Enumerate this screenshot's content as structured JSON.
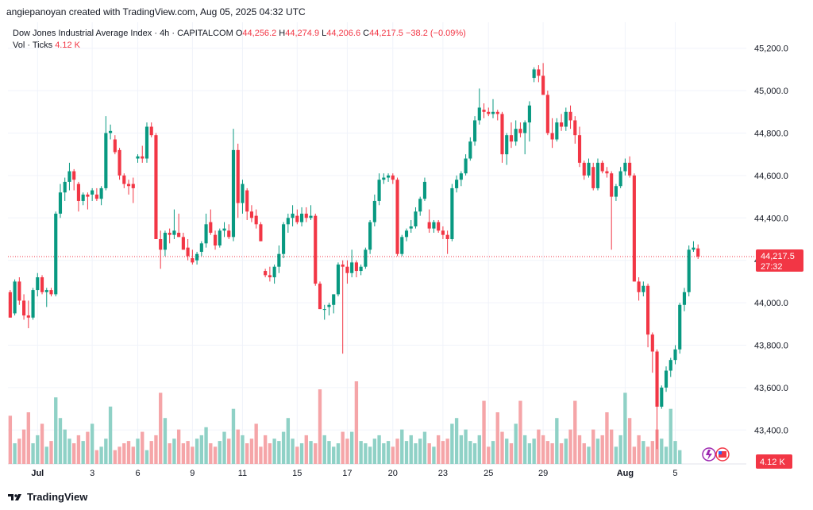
{
  "header": {
    "credit": "angiepanoyan created with TradingView.com, Aug 05, 2025 04:32 UTC"
  },
  "legend": {
    "symbol": "Dow Jones Industrial Average Index · 4h · CAPITALCOM",
    "o_label": "O",
    "o_value": "44,256.2",
    "h_label": "H",
    "h_value": "44,274.9",
    "l_label": "L",
    "l_value": "44,206.6",
    "c_label": "C",
    "c_value": "44,217.5",
    "change": "−38.2 (−0.09%)",
    "vol_label": "Vol · Ticks",
    "vol_value": "4.12 K"
  },
  "price_badge": {
    "price": "44,217.5",
    "countdown": "27:32"
  },
  "volume_badge": "4.12 K",
  "footer": {
    "brand": "TradingView"
  },
  "colors": {
    "up": "#089981",
    "down": "#f23645",
    "vol_up": "#8fd1c6",
    "vol_down": "#f5a5a8",
    "grid": "#f0f3fa"
  },
  "chart_data": {
    "type": "candlestick",
    "title": "Dow Jones Industrial Average Index · 4h · CAPITALCOM",
    "y_ticks": [
      "43,400.0",
      "43,600.0",
      "43,800.0",
      "44,000.0",
      "44,200.0",
      "44,400.0",
      "44,600.0",
      "44,800.0",
      "45,000.0",
      "45,200.0"
    ],
    "y_tick_values": [
      43400,
      43600,
      43800,
      44000,
      44200,
      44400,
      44600,
      44800,
      45000,
      45200
    ],
    "ylim": [
      43300,
      45300
    ],
    "x_tick_labels": [
      "Jul",
      "3",
      "6",
      "9",
      "11",
      "15",
      "17",
      "20",
      "23",
      "25",
      "29",
      "Aug",
      "5"
    ],
    "x_tick_index": [
      6,
      18,
      28,
      40,
      51,
      63,
      74,
      84,
      95,
      105,
      117,
      135,
      146
    ],
    "last_price": 44217.5,
    "candles": [
      [
        44050,
        44060,
        43930,
        43930
      ],
      [
        43950,
        44110,
        43940,
        44100
      ],
      [
        44100,
        44120,
        43990,
        44010
      ],
      [
        44010,
        44040,
        43920,
        43940
      ],
      [
        43940,
        44010,
        43880,
        43930
      ],
      [
        43930,
        44070,
        43920,
        44060
      ],
      [
        44060,
        44140,
        44030,
        44120
      ],
      [
        44120,
        44130,
        44040,
        44050
      ],
      [
        44050,
        44070,
        43980,
        44060
      ],
      [
        44060,
        44070,
        44030,
        44040
      ],
      [
        44040,
        44430,
        44030,
        44420
      ],
      [
        44420,
        44560,
        44400,
        44520
      ],
      [
        44520,
        44590,
        44480,
        44570
      ],
      [
        44570,
        44660,
        44530,
        44620
      ],
      [
        44620,
        44630,
        44530,
        44580
      ],
      [
        44560,
        44570,
        44430,
        44480
      ],
      [
        44480,
        44520,
        44460,
        44510
      ],
      [
        44510,
        44520,
        44440,
        44500
      ],
      [
        44510,
        44540,
        44480,
        44530
      ],
      [
        44510,
        44540,
        44480,
        44490
      ],
      [
        44490,
        44550,
        44460,
        44540
      ],
      [
        44540,
        44880,
        44530,
        44800
      ],
      [
        44800,
        44840,
        44770,
        44810
      ],
      [
        44770,
        44790,
        44700,
        44710
      ],
      [
        44720,
        44730,
        44580,
        44600
      ],
      [
        44600,
        44610,
        44540,
        44560
      ],
      [
        44560,
        44580,
        44510,
        44550
      ],
      [
        44560,
        44590,
        44470,
        44540
      ],
      [
        44680,
        44700,
        44660,
        44690
      ],
      [
        44690,
        44740,
        44660,
        44680
      ],
      [
        44680,
        44850,
        44660,
        44830
      ],
      [
        44830,
        44850,
        44780,
        44790
      ],
      [
        44790,
        44800,
        44300,
        44300
      ],
      [
        44300,
        44340,
        44160,
        44250
      ],
      [
        44250,
        44340,
        44220,
        44330
      ],
      [
        44330,
        44350,
        44280,
        44320
      ],
      [
        44320,
        44440,
        44300,
        44340
      ],
      [
        44330,
        44420,
        44310,
        44310
      ],
      [
        44310,
        44330,
        44250,
        44250
      ],
      [
        44260,
        44300,
        44200,
        44220
      ],
      [
        44210,
        44250,
        44180,
        44190
      ],
      [
        44200,
        44240,
        44180,
        44230
      ],
      [
        44240,
        44290,
        44220,
        44280
      ],
      [
        44280,
        44420,
        44260,
        44370
      ],
      [
        44380,
        44440,
        44320,
        44330
      ],
      [
        44320,
        44340,
        44250,
        44270
      ],
      [
        44270,
        44350,
        44260,
        44340
      ],
      [
        44340,
        44380,
        44310,
        44350
      ],
      [
        44340,
        44370,
        44300,
        44310
      ],
      [
        44310,
        44820,
        44290,
        44720
      ],
      [
        44720,
        44750,
        44400,
        44470
      ],
      [
        44470,
        44580,
        44420,
        44560
      ],
      [
        44530,
        44540,
        44390,
        44430
      ],
      [
        44430,
        44460,
        44380,
        44400
      ],
      [
        44410,
        44440,
        44350,
        44370
      ],
      [
        44370,
        44380,
        44290,
        44290
      ],
      [
        44150,
        44160,
        44120,
        44130
      ],
      [
        44130,
        44170,
        44100,
        44120
      ],
      [
        44120,
        44180,
        44090,
        44170
      ],
      [
        44170,
        44270,
        44140,
        44230
      ],
      [
        44230,
        44380,
        44210,
        44370
      ],
      [
        44370,
        44420,
        44330,
        44400
      ],
      [
        44400,
        44460,
        44360,
        44420
      ],
      [
        44410,
        44440,
        44370,
        44380
      ],
      [
        44380,
        44450,
        44360,
        44420
      ],
      [
        44420,
        44450,
        44380,
        44400
      ],
      [
        44400,
        44460,
        44390,
        44410
      ],
      [
        44410,
        44420,
        44080,
        44090
      ],
      [
        44090,
        44100,
        43970,
        43970
      ],
      [
        43970,
        43990,
        43920,
        43970
      ],
      [
        43980,
        44000,
        43940,
        43990
      ],
      [
        43990,
        44040,
        43950,
        44040
      ],
      [
        44040,
        44190,
        44030,
        44180
      ],
      [
        44180,
        44200,
        43760,
        44170
      ],
      [
        44170,
        44200,
        44090,
        44140
      ],
      [
        44140,
        44250,
        44120,
        44190
      ],
      [
        44190,
        44200,
        44120,
        44150
      ],
      [
        44150,
        44180,
        44130,
        44170
      ],
      [
        44170,
        44260,
        44160,
        44250
      ],
      [
        44250,
        44390,
        44230,
        44380
      ],
      [
        44380,
        44510,
        44360,
        44480
      ],
      [
        44480,
        44610,
        44460,
        44580
      ],
      [
        44580,
        44610,
        44560,
        44590
      ],
      [
        44590,
        44610,
        44570,
        44600
      ],
      [
        44600,
        44610,
        44560,
        44580
      ],
      [
        44580,
        44590,
        44220,
        44230
      ],
      [
        44230,
        44320,
        44220,
        44310
      ],
      [
        44310,
        44350,
        44290,
        44340
      ],
      [
        44350,
        44390,
        44330,
        44360
      ],
      [
        44360,
        44450,
        44350,
        44430
      ],
      [
        44430,
        44500,
        44410,
        44490
      ],
      [
        44490,
        44590,
        44480,
        44570
      ],
      [
        44380,
        44440,
        44330,
        44350
      ],
      [
        44350,
        44390,
        44330,
        44380
      ],
      [
        44380,
        44390,
        44330,
        44340
      ],
      [
        44340,
        44360,
        44300,
        44320
      ],
      [
        44320,
        44340,
        44230,
        44300
      ],
      [
        44300,
        44560,
        44290,
        44540
      ],
      [
        44540,
        44600,
        44520,
        44580
      ],
      [
        44580,
        44620,
        44550,
        44610
      ],
      [
        44610,
        44700,
        44600,
        44680
      ],
      [
        44680,
        44780,
        44670,
        44760
      ],
      [
        44760,
        44880,
        44740,
        44860
      ],
      [
        44860,
        45010,
        44840,
        44920
      ],
      [
        44910,
        44940,
        44870,
        44900
      ],
      [
        44900,
        44920,
        44880,
        44890
      ],
      [
        44890,
        44960,
        44870,
        44900
      ],
      [
        44900,
        44910,
        44860,
        44890
      ],
      [
        44890,
        44900,
        44660,
        44700
      ],
      [
        44700,
        44800,
        44650,
        44790
      ],
      [
        44790,
        44850,
        44730,
        44760
      ],
      [
        44760,
        44860,
        44740,
        44820
      ],
      [
        44820,
        44850,
        44780,
        44800
      ],
      [
        44800,
        44860,
        44700,
        44850
      ],
      [
        44850,
        44950,
        44760,
        44930
      ],
      [
        45060,
        45110,
        45040,
        45100
      ],
      [
        45100,
        45120,
        45040,
        45070
      ],
      [
        45070,
        45130,
        44980,
        44980
      ],
      [
        44980,
        45000,
        44790,
        44800
      ],
      [
        44800,
        44870,
        44730,
        44770
      ],
      [
        44770,
        44870,
        44760,
        44850
      ],
      [
        44850,
        44890,
        44810,
        44830
      ],
      [
        44830,
        44920,
        44810,
        44900
      ],
      [
        44900,
        44930,
        44820,
        44860
      ],
      [
        44860,
        44880,
        44750,
        44790
      ],
      [
        44790,
        44830,
        44640,
        44660
      ],
      [
        44660,
        44670,
        44580,
        44600
      ],
      [
        44600,
        44680,
        44590,
        44660
      ],
      [
        44640,
        44660,
        44530,
        44540
      ],
      [
        44540,
        44680,
        44530,
        44660
      ],
      [
        44660,
        44670,
        44610,
        44620
      ],
      [
        44620,
        44640,
        44590,
        44610
      ],
      [
        44610,
        44620,
        44250,
        44500
      ],
      [
        44500,
        44560,
        44480,
        44550
      ],
      [
        44550,
        44640,
        44540,
        44620
      ],
      [
        44620,
        44680,
        44600,
        44660
      ],
      [
        44660,
        44690,
        44590,
        44600
      ],
      [
        44600,
        44610,
        44100,
        44100
      ],
      [
        44100,
        44120,
        44010,
        44050
      ],
      [
        44050,
        44100,
        44030,
        44080
      ],
      [
        44080,
        44090,
        43790,
        43850
      ],
      [
        43850,
        43860,
        43670,
        43770
      ],
      [
        43770,
        43780,
        43310,
        43510
      ],
      [
        43510,
        43610,
        43500,
        43600
      ],
      [
        43600,
        43700,
        43580,
        43680
      ],
      [
        43680,
        43740,
        43650,
        43730
      ],
      [
        43730,
        43800,
        43710,
        43780
      ],
      [
        43780,
        44000,
        43760,
        43990
      ],
      [
        43990,
        44070,
        43960,
        44050
      ],
      [
        44050,
        44270,
        44030,
        44250
      ],
      [
        44250,
        44290,
        44240,
        44260
      ],
      [
        44256.2,
        44274.9,
        44206.6,
        44217.5
      ]
    ],
    "volume": [
      42,
      18,
      22,
      30,
      45,
      18,
      25,
      35,
      15,
      20,
      58,
      40,
      30,
      22,
      18,
      25,
      20,
      28,
      35,
      12,
      15,
      22,
      50,
      12,
      15,
      18,
      20,
      15,
      22,
      28,
      12,
      20,
      25,
      62,
      40,
      18,
      22,
      30,
      18,
      20,
      15,
      22,
      25,
      32,
      18,
      15,
      20,
      28,
      22,
      48,
      30,
      25,
      18,
      22,
      35,
      15,
      25,
      18,
      22,
      20,
      28,
      40,
      22,
      15,
      18,
      25,
      20,
      18,
      65,
      25,
      20,
      15,
      18,
      28,
      22,
      28,
      72,
      20,
      18,
      15,
      22,
      25,
      18,
      20,
      15,
      22,
      30,
      20,
      25,
      18,
      22,
      28,
      18,
      15,
      25,
      20,
      22,
      35,
      40,
      25,
      30,
      20,
      18,
      25,
      55,
      15,
      20,
      45,
      28,
      22,
      18,
      35,
      55,
      25,
      18,
      22,
      30,
      25,
      20,
      18,
      40,
      18,
      22,
      30,
      55,
      25,
      18,
      15,
      30,
      22,
      25,
      45,
      30,
      15,
      25,
      62,
      40,
      15,
      25,
      20,
      15,
      20,
      30,
      22,
      15,
      48,
      20,
      12
    ]
  }
}
